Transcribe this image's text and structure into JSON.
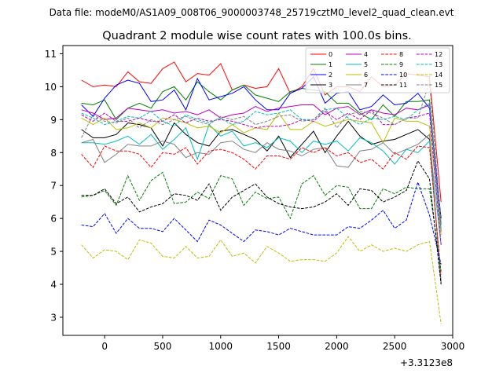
{
  "chart_data": {
    "type": "line",
    "suptitle": "Data file: modeM0/AS1A09_008T06_9000003748_25719cztM0_level2_quad_clean.evt",
    "title": "Quadrant 2 module wise count rates with 100.0s bins.",
    "xlabel": "",
    "ylabel": "",
    "offset_text": "+3.3123e8",
    "xlim": [
      -360,
      3000
    ],
    "ylim": [
      2.45,
      11.25
    ],
    "xticks": [
      0,
      500,
      1000,
      1500,
      2000,
      2500,
      3000
    ],
    "xtick_labels": [
      "0",
      "500",
      "1000",
      "1500",
      "2000",
      "2500",
      "3000"
    ],
    "yticks": [
      3,
      4,
      5,
      6,
      7,
      8,
      9,
      10,
      11
    ],
    "ytick_labels": [
      "3",
      "4",
      "5",
      "6",
      "7",
      "8",
      "9",
      "10",
      "11"
    ],
    "x": [
      -200,
      -100,
      0,
      100,
      200,
      300,
      400,
      500,
      600,
      700,
      800,
      900,
      1000,
      1100,
      1200,
      1300,
      1400,
      1500,
      1600,
      1700,
      1800,
      1900,
      2000,
      2100,
      2200,
      2300,
      2400,
      2500,
      2600,
      2700,
      2800,
      2900
    ],
    "legend_position": "top-right",
    "series": [
      {
        "name": "0",
        "color": "#ff0000",
        "dash": "solid",
        "values": [
          10.2,
          10.0,
          10.05,
          10.0,
          10.45,
          10.15,
          10.1,
          10.55,
          10.75,
          10.15,
          10.4,
          10.35,
          10.7,
          9.9,
          10.05,
          9.95,
          10.0,
          10.55,
          9.8,
          10.0,
          10.55,
          9.75,
          10.0,
          10.0,
          9.85,
          10.3,
          10.0,
          10.05,
          10.4,
          10.35,
          10.3,
          6.5
        ]
      },
      {
        "name": "1",
        "color": "#008000",
        "dash": "solid",
        "values": [
          9.5,
          9.45,
          9.6,
          9.0,
          9.35,
          9.5,
          9.35,
          9.85,
          10.0,
          9.6,
          10.15,
          9.85,
          9.6,
          9.9,
          10.05,
          9.75,
          9.65,
          9.55,
          9.85,
          9.95,
          9.9,
          9.85,
          9.5,
          9.5,
          9.2,
          9.0,
          9.45,
          9.1,
          9.55,
          9.55,
          9.6,
          5.8
        ]
      },
      {
        "name": "2",
        "color": "#0000ff",
        "dash": "solid",
        "values": [
          9.45,
          9.1,
          9.65,
          10.05,
          10.2,
          10.1,
          9.55,
          9.6,
          9.9,
          9.3,
          10.25,
          9.6,
          9.7,
          9.8,
          10.0,
          9.6,
          9.3,
          9.3,
          9.8,
          9.95,
          10.3,
          9.5,
          9.8,
          9.85,
          9.3,
          9.4,
          9.75,
          9.45,
          9.5,
          9.8,
          9.35,
          6.0
        ]
      },
      {
        "name": "3",
        "color": "#000000",
        "dash": "solid",
        "values": [
          8.7,
          8.45,
          8.45,
          8.55,
          8.9,
          8.85,
          8.75,
          8.2,
          8.9,
          8.55,
          8.3,
          8.2,
          8.65,
          8.7,
          8.55,
          8.4,
          8.05,
          8.5,
          7.85,
          8.25,
          8.65,
          8.0,
          8.5,
          8.95,
          8.5,
          8.25,
          8.35,
          8.4,
          8.55,
          8.7,
          8.4,
          4.05
        ]
      },
      {
        "name": "4",
        "color": "#bf00bf",
        "dash": "solid",
        "values": [
          9.3,
          9.2,
          9.0,
          9.05,
          9.35,
          9.3,
          9.25,
          9.3,
          9.2,
          9.25,
          9.15,
          9.3,
          9.05,
          9.15,
          9.2,
          9.4,
          9.25,
          9.35,
          9.4,
          9.45,
          9.45,
          9.15,
          9.35,
          9.4,
          9.15,
          9.3,
          9.2,
          9.15,
          9.35,
          9.3,
          9.45,
          5.6
        ]
      },
      {
        "name": "5",
        "color": "#00bfbf",
        "dash": "solid",
        "values": [
          8.3,
          8.3,
          8.25,
          8.35,
          8.5,
          8.25,
          8.55,
          8.1,
          8.4,
          8.75,
          7.8,
          8.85,
          8.5,
          8.65,
          8.2,
          8.3,
          8.15,
          8.45,
          8.35,
          8.0,
          8.35,
          8.25,
          8.35,
          8.05,
          8.45,
          8.3,
          8.05,
          7.65,
          8.1,
          8.0,
          8.35,
          5.2
        ]
      },
      {
        "name": "6",
        "color": "#bfbf00",
        "dash": "solid",
        "values": [
          9.05,
          8.85,
          9.05,
          8.7,
          8.75,
          8.9,
          8.75,
          9.05,
          9.0,
          8.9,
          8.75,
          8.8,
          8.6,
          8.85,
          8.6,
          8.75,
          8.7,
          9.2,
          8.7,
          8.7,
          8.95,
          8.8,
          8.9,
          9.0,
          8.95,
          8.9,
          8.3,
          9.05,
          8.95,
          8.95,
          8.8,
          5.5
        ]
      },
      {
        "name": "7",
        "color": "#808080",
        "dash": "solid",
        "values": [
          8.3,
          8.4,
          7.7,
          7.95,
          8.25,
          8.2,
          8.2,
          8.35,
          8.25,
          7.85,
          8.0,
          7.95,
          8.3,
          8.35,
          8.1,
          8.0,
          8.3,
          8.1,
          8.05,
          7.9,
          8.1,
          8.15,
          7.6,
          7.55,
          8.05,
          8.1,
          8.3,
          7.95,
          8.1,
          8.25,
          8.55,
          4.0
        ]
      },
      {
        "name": "8",
        "color": "#ff0000",
        "dash": "dashed",
        "values": [
          7.95,
          7.55,
          8.2,
          8.05,
          8.05,
          7.95,
          7.55,
          8.0,
          7.95,
          8.15,
          7.65,
          8.05,
          8.1,
          8.0,
          7.8,
          7.5,
          7.9,
          7.9,
          7.8,
          8.15,
          8.0,
          8.15,
          7.9,
          8.0,
          7.7,
          7.8,
          7.5,
          8.0,
          7.8,
          8.2,
          8.15,
          4.3
        ]
      },
      {
        "name": "9",
        "color": "#008000",
        "dash": "dashed",
        "values": [
          6.65,
          6.7,
          6.85,
          6.4,
          7.3,
          6.55,
          7.15,
          7.4,
          6.45,
          6.5,
          6.8,
          6.6,
          7.3,
          7.2,
          6.4,
          6.8,
          6.6,
          6.65,
          6.0,
          7.05,
          7.3,
          6.7,
          7.0,
          6.95,
          6.3,
          6.3,
          6.9,
          6.75,
          6.95,
          6.9,
          6.9,
          4.4
        ]
      },
      {
        "name": "10",
        "color": "#0000ff",
        "dash": "dashed",
        "values": [
          5.8,
          5.75,
          6.15,
          5.55,
          6.0,
          5.7,
          5.7,
          5.6,
          6.0,
          5.65,
          5.3,
          5.95,
          5.8,
          5.55,
          5.3,
          5.65,
          5.6,
          5.5,
          5.7,
          5.6,
          5.5,
          5.5,
          5.5,
          5.75,
          5.7,
          5.95,
          6.25,
          5.7,
          5.95,
          7.1,
          6.1,
          4.6
        ]
      },
      {
        "name": "11",
        "color": "#000000",
        "dash": "dashed",
        "values": [
          6.7,
          6.7,
          6.9,
          6.45,
          6.65,
          6.2,
          6.35,
          6.45,
          6.75,
          6.7,
          6.55,
          7.05,
          6.25,
          6.65,
          6.85,
          7.05,
          6.65,
          6.45,
          6.35,
          6.3,
          6.35,
          6.5,
          6.75,
          6.4,
          6.9,
          6.85,
          6.5,
          6.65,
          6.85,
          7.75,
          7.2,
          4.0
        ]
      },
      {
        "name": "12",
        "color": "#bf00bf",
        "dash": "dashed",
        "values": [
          9.15,
          8.95,
          9.2,
          8.95,
          8.95,
          9.05,
          8.95,
          8.95,
          9.15,
          8.9,
          9.05,
          8.95,
          9.0,
          8.95,
          8.85,
          8.75,
          8.8,
          8.8,
          8.85,
          9.0,
          8.95,
          9.25,
          9.0,
          9.2,
          9.0,
          9.3,
          8.85,
          8.85,
          9.05,
          9.1,
          9.2,
          5.2
        ]
      },
      {
        "name": "13",
        "color": "#00bfbf",
        "dash": "dashed",
        "values": [
          9.2,
          9.05,
          8.85,
          8.95,
          9.1,
          9.05,
          9.25,
          8.95,
          8.8,
          9.15,
          9.0,
          8.9,
          9.05,
          8.85,
          8.95,
          9.25,
          9.15,
          9.2,
          9.3,
          9.0,
          9.0,
          9.3,
          9.35,
          9.05,
          8.85,
          9.05,
          9.0,
          9.1,
          9.0,
          9.3,
          9.5,
          5.7
        ]
      },
      {
        "name": "14",
        "color": "#bfbf00",
        "dash": "dashed",
        "values": [
          5.2,
          4.8,
          5.05,
          5.0,
          4.75,
          5.35,
          5.25,
          4.85,
          4.8,
          5.15,
          4.8,
          4.85,
          5.35,
          4.85,
          4.95,
          4.65,
          5.15,
          4.95,
          4.7,
          4.75,
          4.75,
          4.7,
          4.95,
          5.45,
          5.0,
          5.2,
          5.0,
          5.1,
          5.0,
          5.2,
          5.3,
          2.8
        ]
      },
      {
        "name": "15",
        "color": "#808080",
        "dash": "dashed",
        "values": [
          8.45,
          9.15,
          8.95,
          8.9,
          9.05,
          8.75,
          9.0,
          8.85,
          9.0,
          9.1,
          8.95,
          8.85,
          9.1,
          9.0,
          9.1,
          8.85,
          8.95,
          9.1,
          9.15,
          8.95,
          9.0,
          9.35,
          8.75,
          9.15,
          9.25,
          9.2,
          9.05,
          8.85,
          9.05,
          9.05,
          10.15,
          5.85
        ]
      }
    ]
  }
}
